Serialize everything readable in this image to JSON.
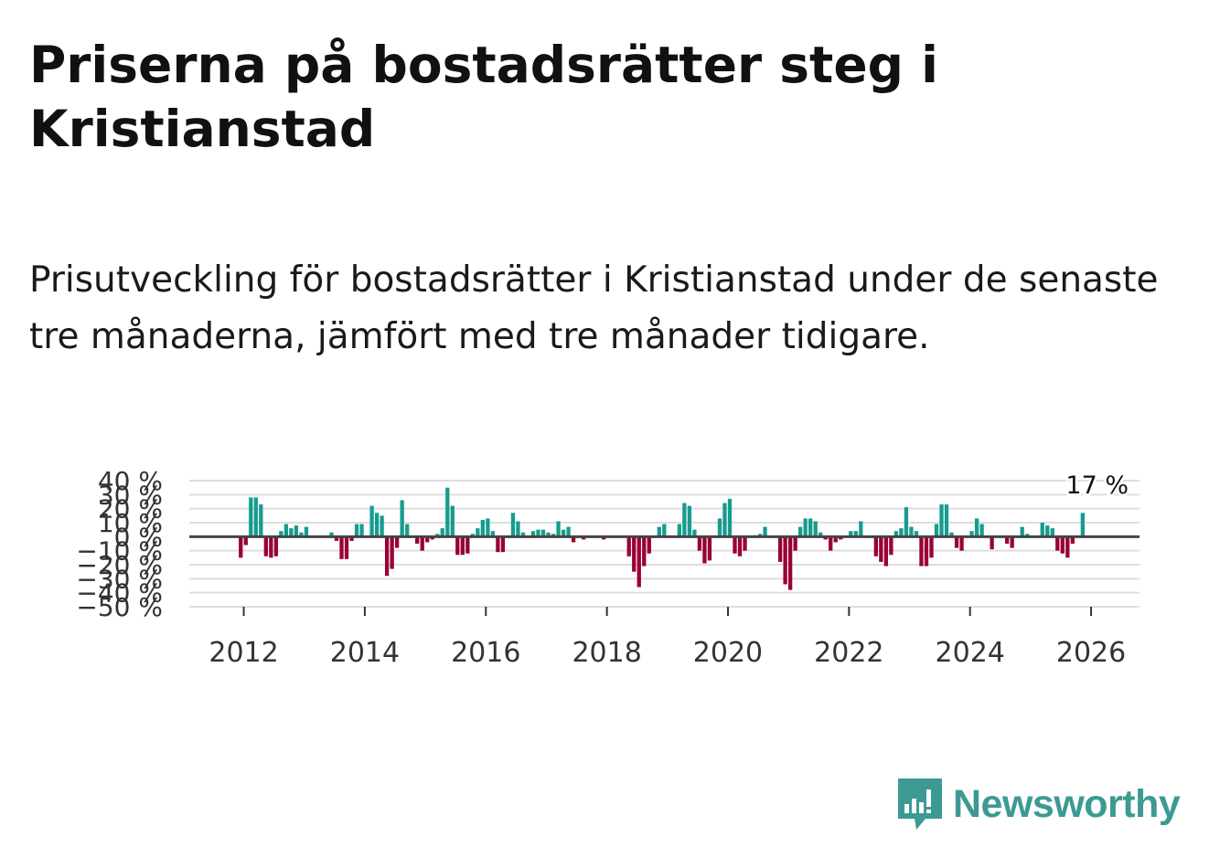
{
  "title": "Priserna på bostadsrätter steg i Kristianstad",
  "subtitle": "Prisutveckling för bostadsrätter i Kristianstad under de senaste tre månaderna, jämfört med tre månader tidigare.",
  "brand": {
    "name": "Newsworthy",
    "color": "#3d9a93"
  },
  "chart_data": {
    "type": "bar",
    "title": "",
    "xlabel": "",
    "ylabel": "",
    "ylim": [
      -50,
      40
    ],
    "yticks": [
      40,
      30,
      20,
      10,
      0,
      -10,
      -20,
      -30,
      -40,
      -50
    ],
    "ytick_labels": [
      "40 %",
      "30 %",
      "20 %",
      "10 %",
      "0 %",
      "−10 %",
      "−20 %",
      "−30 %",
      "−40 %",
      "−50 %"
    ],
    "x_start": 2011.95,
    "x_step": 0.0833,
    "xlim": [
      2011.1,
      2026.8
    ],
    "xticks": [
      2012,
      2014,
      2016,
      2018,
      2020,
      2022,
      2024,
      2026
    ],
    "xtick_labels": [
      "2012",
      "2014",
      "2016",
      "2018",
      "2020",
      "2022",
      "2024",
      "2026"
    ],
    "colors": {
      "positive": "#169c8f",
      "negative": "#990033",
      "grid": "#dddddd",
      "zero": "#444444"
    },
    "values": [
      -15,
      -6,
      28,
      28,
      23,
      -14,
      -15,
      -14,
      4,
      9,
      6,
      8,
      3,
      7,
      0,
      0,
      0,
      0,
      3,
      -3,
      -16,
      -16,
      -3,
      9,
      9,
      0,
      22,
      17,
      15,
      -28,
      -23,
      -8,
      26,
      9,
      0,
      -5,
      -10,
      -4,
      -2,
      2,
      6,
      35,
      22,
      -13,
      -13,
      -12,
      2,
      6,
      12,
      13,
      4,
      -11,
      -11,
      0,
      17,
      11,
      3,
      0,
      4,
      5,
      5,
      3,
      2,
      11,
      5,
      7,
      -4,
      0,
      -2,
      0,
      0,
      0,
      -2,
      0,
      0,
      0,
      0,
      -14,
      -25,
      -36,
      -21,
      -12,
      0,
      7,
      9,
      0,
      0,
      9,
      24,
      22,
      5,
      -10,
      -19,
      -17,
      0,
      13,
      24,
      27,
      -12,
      -14,
      -10,
      0,
      1,
      2,
      7,
      0,
      0,
      -18,
      -34,
      -38,
      -10,
      7,
      13,
      13,
      11,
      3,
      -2,
      -10,
      -4,
      -2,
      0,
      4,
      4,
      11,
      0,
      0,
      -14,
      -18,
      -21,
      -13,
      4,
      6,
      21,
      7,
      4,
      -21,
      -21,
      -15,
      9,
      23,
      23,
      3,
      -8,
      -10,
      0,
      4,
      13,
      9,
      0,
      -9,
      0,
      0,
      -5,
      -8,
      0,
      7,
      2,
      0,
      0,
      10,
      8,
      6,
      -10,
      -12,
      -15,
      -5,
      0,
      17
    ]
  },
  "annotation": {
    "label": "17 %",
    "value": 17
  }
}
